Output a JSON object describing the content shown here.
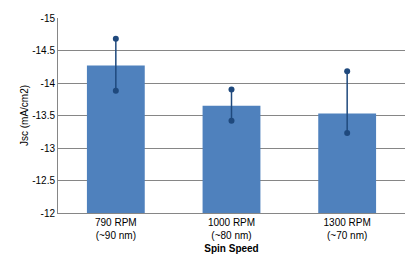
{
  "chart_data": {
    "type": "bar",
    "x_label": "Spin Speed",
    "y_label": "Jsc (mA/cm2)",
    "categories": [
      "790 RPM\n(~90 nm)",
      "1000 RPM\n(~80 nm)",
      "1300 RPM\n(~70 nm)"
    ],
    "values": [
      -14.27,
      -13.65,
      -13.53
    ],
    "error_plus": [
      0.39,
      0.23,
      0.3
    ],
    "error_minus": [
      0.41,
      0.25,
      0.65
    ],
    "color": "#4f81bd",
    "error_color": "#1f497d",
    "marker": "circle",
    "ylim": [
      -12,
      -15
    ],
    "yticks": [
      -12,
      -12.5,
      -13,
      -13.5,
      -14,
      -14.5,
      -15
    ],
    "grid": true
  }
}
